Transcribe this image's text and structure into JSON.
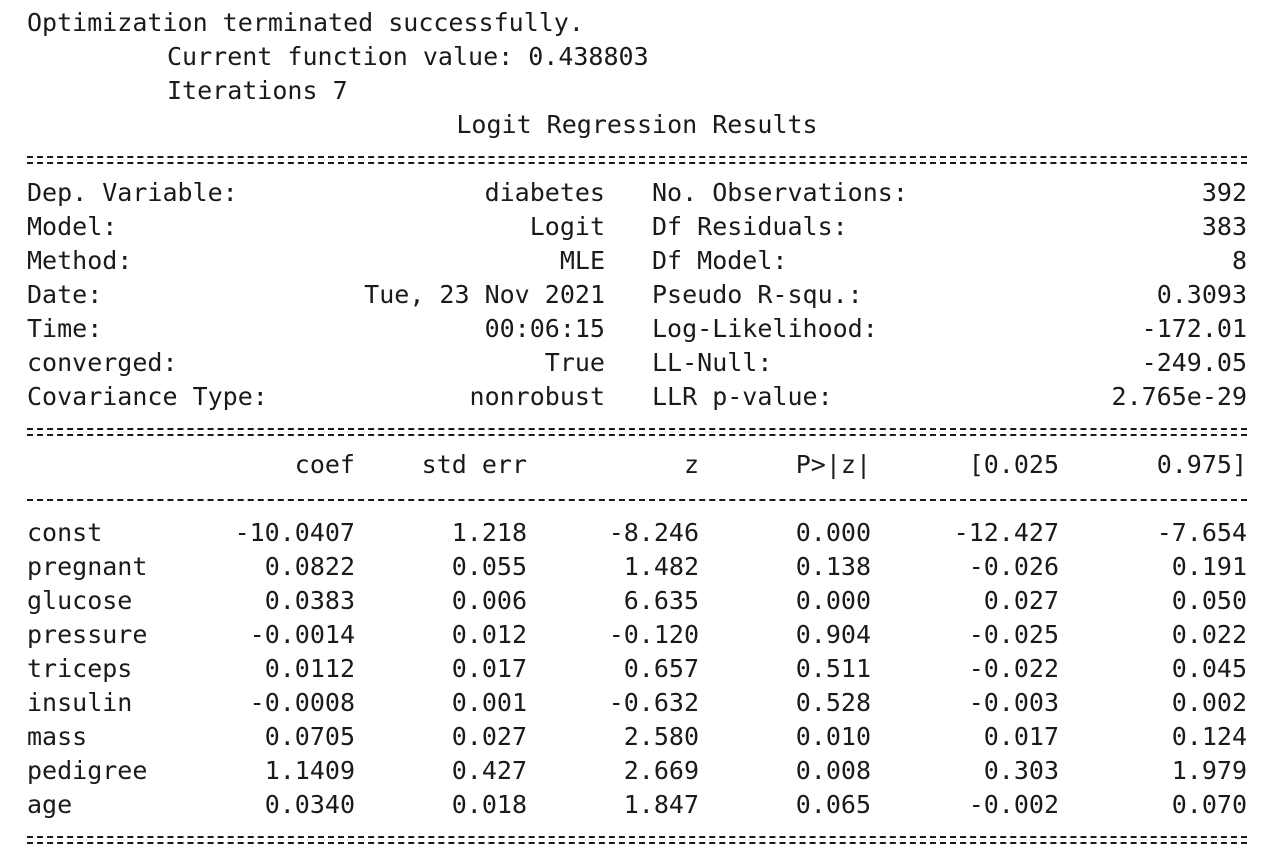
{
  "header": {
    "status": "Optimization terminated successfully.",
    "current_function": "Current function value: 0.438803",
    "iterations": "Iterations 7",
    "title": "Logit Regression Results"
  },
  "summary": [
    {
      "label_left": "Dep. Variable:",
      "value_left": "diabetes",
      "label_right": "No. Observations:",
      "value_right": "392"
    },
    {
      "label_left": "Model:",
      "value_left": "Logit",
      "label_right": "Df Residuals:",
      "value_right": "383"
    },
    {
      "label_left": "Method:",
      "value_left": "MLE",
      "label_right": "Df Model:",
      "value_right": "8"
    },
    {
      "label_left": "Date:",
      "value_left": "Tue, 23 Nov 2021",
      "label_right": "Pseudo R-squ.:",
      "value_right": "0.3093"
    },
    {
      "label_left": "Time:",
      "value_left": "00:06:15",
      "label_right": "Log-Likelihood:",
      "value_right": "-172.01"
    },
    {
      "label_left": "converged:",
      "value_left": "True",
      "label_right": "LL-Null:",
      "value_right": "-249.05"
    },
    {
      "label_left": "Covariance Type:",
      "value_left": "nonrobust",
      "label_right": "LLR p-value:",
      "value_right": "2.765e-29"
    }
  ],
  "table": {
    "columns": [
      "coef",
      "std err",
      "z",
      "P>|z|",
      "[0.025",
      "0.975]"
    ],
    "rows": [
      {
        "name": "const",
        "values": [
          "-10.0407",
          "1.218",
          "-8.246",
          "0.000",
          "-12.427",
          "-7.654"
        ]
      },
      {
        "name": "pregnant",
        "values": [
          "0.0822",
          "0.055",
          "1.482",
          "0.138",
          "-0.026",
          "0.191"
        ]
      },
      {
        "name": "glucose",
        "values": [
          "0.0383",
          "0.006",
          "6.635",
          "0.000",
          "0.027",
          "0.050"
        ]
      },
      {
        "name": "pressure",
        "values": [
          "-0.0014",
          "0.012",
          "-0.120",
          "0.904",
          "-0.025",
          "0.022"
        ]
      },
      {
        "name": "triceps",
        "values": [
          "0.0112",
          "0.017",
          "0.657",
          "0.511",
          "-0.022",
          "0.045"
        ]
      },
      {
        "name": "insulin",
        "values": [
          "-0.0008",
          "0.001",
          "-0.632",
          "0.528",
          "-0.003",
          "0.002"
        ]
      },
      {
        "name": "mass",
        "values": [
          "0.0705",
          "0.027",
          "2.580",
          "0.010",
          "0.017",
          "0.124"
        ]
      },
      {
        "name": "pedigree",
        "values": [
          "1.1409",
          "0.427",
          "2.669",
          "0.008",
          "0.303",
          "1.979"
        ]
      },
      {
        "name": "age",
        "values": [
          "0.0340",
          "0.018",
          "1.847",
          "0.065",
          "-0.002",
          "0.070"
        ]
      }
    ]
  }
}
